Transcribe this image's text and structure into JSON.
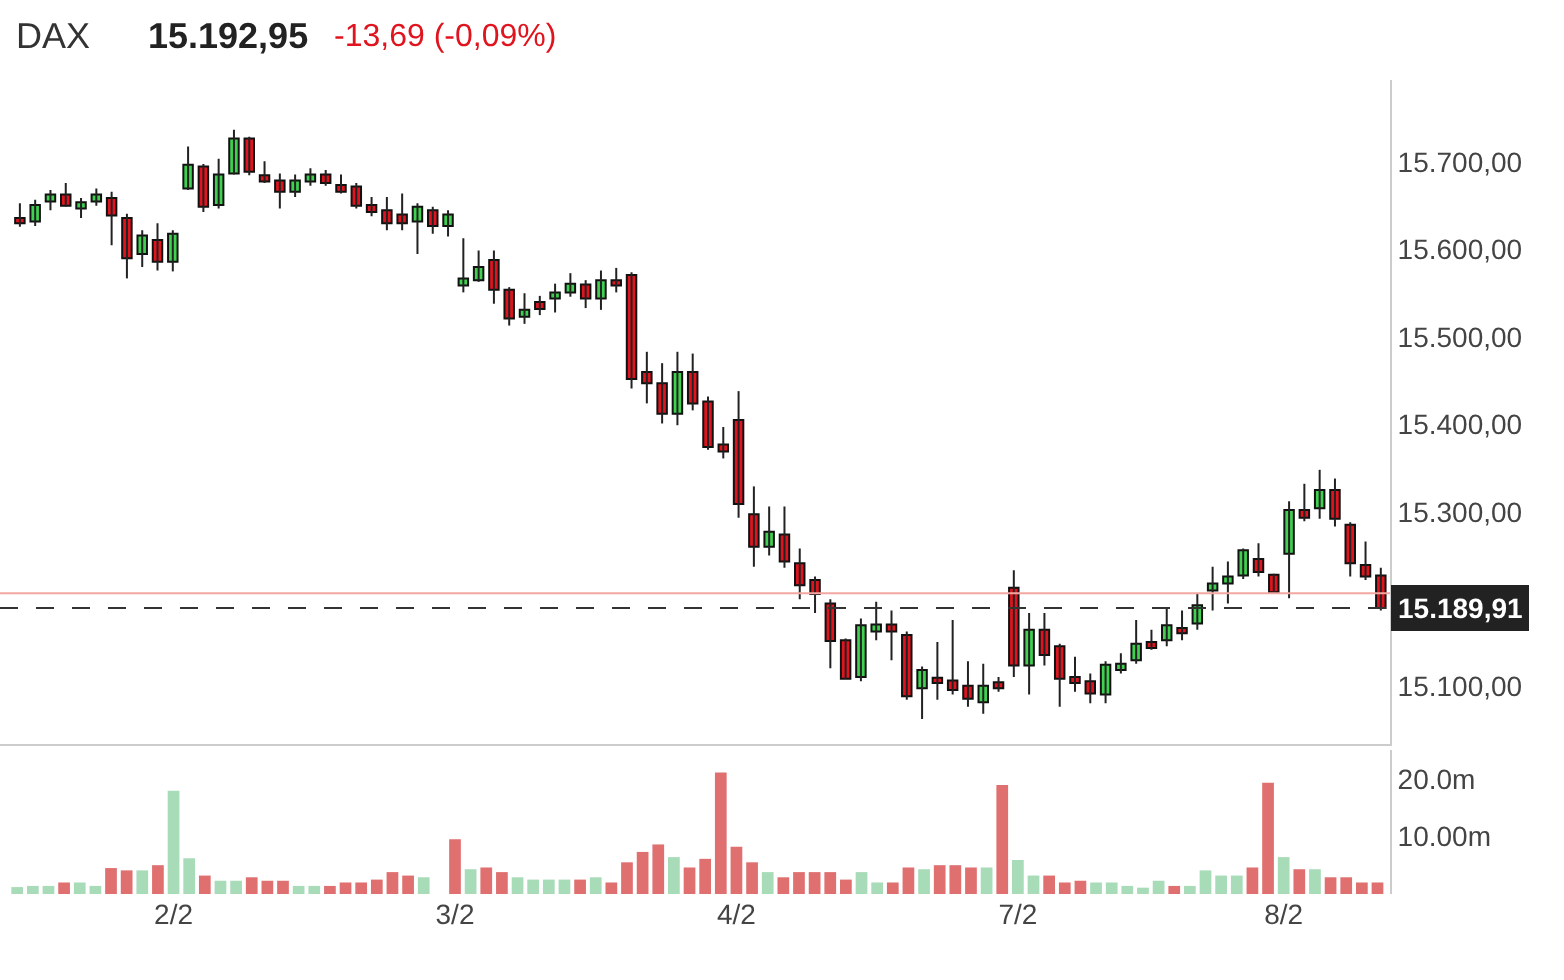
{
  "chart_data": [
    {
      "type": "candlestick",
      "title": "DAX",
      "annotations": [
        "15.192,95",
        "-13,69 (-0,09%)"
      ],
      "categories": [
        null,
        null,
        null,
        null,
        null,
        null,
        null,
        null,
        null,
        null,
        null,
        null,
        null,
        null,
        null,
        null,
        null,
        null,
        null,
        null,
        null,
        null,
        null,
        null,
        null,
        null,
        null,
        null,
        null,
        null,
        null,
        null,
        null,
        null,
        null,
        null,
        null,
        null,
        null,
        null,
        null,
        null,
        null,
        null,
        null,
        null,
        null,
        null,
        null,
        null,
        null,
        null,
        null,
        null,
        null,
        null,
        null,
        null,
        null,
        null,
        null,
        null,
        null,
        null,
        null,
        null,
        null,
        null,
        null,
        null,
        null,
        null,
        null,
        null,
        null,
        null,
        null,
        null,
        null,
        null,
        null,
        null,
        null,
        null,
        null,
        null,
        null,
        null,
        null,
        null
      ],
      "ohlc": [
        [
          15636,
          15653,
          15626,
          15630
        ],
        [
          15632,
          15657,
          15627,
          15651
        ],
        [
          15655,
          15668,
          15645,
          15663
        ],
        [
          15663,
          15676,
          15649,
          15650
        ],
        [
          15647,
          15659,
          15636,
          15654
        ],
        [
          15655,
          15670,
          15650,
          15663
        ],
        [
          15659,
          15666,
          15605,
          15639
        ],
        [
          15636,
          15641,
          15567,
          15590
        ],
        [
          15595,
          15622,
          15580,
          15616
        ],
        [
          15611,
          15630,
          15576,
          15586
        ],
        [
          15586,
          15622,
          15575,
          15618
        ],
        [
          15670,
          15718,
          15668,
          15697
        ],
        [
          15695,
          15698,
          15643,
          15649
        ],
        [
          15651,
          15704,
          15647,
          15686
        ],
        [
          15687,
          15737,
          15686,
          15727
        ],
        [
          15727,
          15729,
          15685,
          15689
        ],
        [
          15685,
          15701,
          15676,
          15678
        ],
        [
          15679,
          15687,
          15647,
          15666
        ],
        [
          15666,
          15686,
          15660,
          15679
        ],
        [
          15678,
          15693,
          15673,
          15686
        ],
        [
          15686,
          15691,
          15673,
          15676
        ],
        [
          15674,
          15686,
          15664,
          15666
        ],
        [
          15672,
          15676,
          15647,
          15650
        ],
        [
          15651,
          15660,
          15638,
          15643
        ],
        [
          15645,
          15660,
          15622,
          15630
        ],
        [
          15640,
          15664,
          15622,
          15630
        ],
        [
          15632,
          15653,
          15595,
          15649
        ],
        [
          15645,
          15649,
          15618,
          15627
        ],
        [
          15627,
          15645,
          15615,
          15640
        ],
        [
          15559,
          15613,
          15551,
          15567
        ],
        [
          15565,
          15599,
          15563,
          15580
        ],
        [
          15588,
          15599,
          15538,
          15554
        ],
        [
          15554,
          15557,
          15513,
          15521
        ],
        [
          15523,
          15550,
          15515,
          15531
        ],
        [
          15540,
          15547,
          15525,
          15532
        ],
        [
          15544,
          15561,
          15528,
          15551
        ],
        [
          15551,
          15573,
          15546,
          15561
        ],
        [
          15560,
          15565,
          15533,
          15544
        ],
        [
          15544,
          15576,
          15531,
          15565
        ],
        [
          15565,
          15579,
          15551,
          15559
        ],
        [
          15571,
          15574,
          15441,
          15452
        ],
        [
          15460,
          15483,
          15424,
          15447
        ],
        [
          15447,
          15470,
          15401,
          15412
        ],
        [
          15412,
          15483,
          15399,
          15460
        ],
        [
          15460,
          15481,
          15416,
          15424
        ],
        [
          15426,
          15432,
          15371,
          15374
        ],
        [
          15377,
          15397,
          15361,
          15369
        ],
        [
          15405,
          15438,
          15293,
          15309
        ],
        [
          15297,
          15329,
          15237,
          15260
        ],
        [
          15260,
          15306,
          15250,
          15277
        ],
        [
          15274,
          15306,
          15236,
          15243
        ],
        [
          15241,
          15258,
          15200,
          15216
        ],
        [
          15222,
          15226,
          15184,
          15206
        ],
        [
          15195,
          15200,
          15121,
          15152
        ],
        [
          15153,
          15155,
          15109,
          15109
        ],
        [
          15111,
          15178,
          15106,
          15170
        ],
        [
          15163,
          15197,
          15153,
          15171
        ],
        [
          15171,
          15187,
          15130,
          15163
        ],
        [
          15159,
          15163,
          15085,
          15089
        ],
        [
          15098,
          15123,
          15063,
          15119
        ],
        [
          15110,
          15151,
          15085,
          15104
        ],
        [
          15107,
          15176,
          15091,
          15096
        ],
        [
          15101,
          15129,
          15077,
          15086
        ],
        [
          15082,
          15126,
          15069,
          15101
        ],
        [
          15105,
          15111,
          15094,
          15098
        ],
        [
          15213,
          15233,
          15111,
          15124
        ],
        [
          15124,
          15184,
          15091,
          15165
        ],
        [
          15165,
          15184,
          15124,
          15136
        ],
        [
          15146,
          15149,
          15077,
          15109
        ],
        [
          15111,
          15134,
          15094,
          15104
        ],
        [
          15106,
          15115,
          15081,
          15092
        ],
        [
          15091,
          15129,
          15081,
          15125
        ],
        [
          15119,
          15138,
          15115,
          15126
        ],
        [
          15130,
          15176,
          15126,
          15149
        ],
        [
          15151,
          15165,
          15142,
          15144
        ],
        [
          15153,
          15191,
          15146,
          15170
        ],
        [
          15167,
          15187,
          15153,
          15161
        ],
        [
          15172,
          15206,
          15165,
          15193
        ],
        [
          15210,
          15237,
          15187,
          15218
        ],
        [
          15218,
          15243,
          15195,
          15226
        ],
        [
          15227,
          15258,
          15223,
          15256
        ],
        [
          15246,
          15264,
          15226,
          15231
        ],
        [
          15228,
          15229,
          15206,
          15208
        ],
        [
          15252,
          15312,
          15201,
          15302
        ],
        [
          15302,
          15332,
          15289,
          15293
        ],
        [
          15304,
          15348,
          15292,
          15325
        ],
        [
          15325,
          15338,
          15283,
          15292
        ],
        [
          15285,
          15288,
          15226,
          15241
        ],
        [
          15239,
          15266,
          15222,
          15226
        ],
        [
          15227,
          15236,
          15187,
          15190
        ]
      ],
      "colors": [
        "#e0141e",
        "#3fd14f",
        "#3fd14f",
        "#e0141e",
        "#3fd14f",
        "#3fd14f",
        "#e0141e",
        "#e0141e",
        "#3fd14f",
        "#e0141e",
        "#3fd14f",
        "#3fd14f",
        "#e0141e",
        "#3fd14f",
        "#3fd14f",
        "#e0141e",
        "#e0141e",
        "#e0141e",
        "#3fd14f",
        "#3fd14f",
        "#e0141e",
        "#e0141e",
        "#e0141e",
        "#e0141e",
        "#e0141e",
        "#e0141e",
        "#3fd14f",
        "#e0141e",
        "#3fd14f",
        "#3fd14f",
        "#3fd14f",
        "#e0141e",
        "#e0141e",
        "#3fd14f",
        "#e0141e",
        "#3fd14f",
        "#3fd14f",
        "#e0141e",
        "#3fd14f",
        "#e0141e",
        "#e0141e",
        "#e0141e",
        "#e0141e",
        "#3fd14f",
        "#e0141e",
        "#e0141e",
        "#e0141e",
        "#e0141e",
        "#e0141e",
        "#3fd14f",
        "#e0141e",
        "#e0141e",
        "#e0141e",
        "#e0141e",
        "#e0141e",
        "#3fd14f",
        "#3fd14f",
        "#e0141e",
        "#e0141e",
        "#3fd14f",
        "#e0141e",
        "#e0141e",
        "#e0141e",
        "#3fd14f",
        "#e0141e",
        "#e0141e",
        "#3fd14f",
        "#e0141e",
        "#e0141e",
        "#e0141e",
        "#e0141e",
        "#3fd14f",
        "#3fd14f",
        "#3fd14f",
        "#e0141e",
        "#3fd14f",
        "#e0141e",
        "#3fd14f",
        "#3fd14f",
        "#3fd14f",
        "#3fd14f",
        "#e0141e",
        "#e0141e",
        "#3fd14f",
        "#e0141e",
        "#3fd14f",
        "#e0141e",
        "#e0141e",
        "#e0141e",
        "#e0141e"
      ],
      "ylim": [
        15034,
        15794
      ],
      "yticks": [
        {
          "value": 15100,
          "label": "15.100,00"
        },
        {
          "value": 15300,
          "label": "15.300,00"
        },
        {
          "value": 15400,
          "label": "15.400,00"
        },
        {
          "value": 15500,
          "label": "15.500,00"
        },
        {
          "value": 15600,
          "label": "15.600,00"
        },
        {
          "value": 15700,
          "label": "15.700,00"
        }
      ],
      "ref_lines": [
        {
          "axis": "y",
          "value": 15206.64,
          "color": "#f2a8a0",
          "line_style": "solid"
        },
        {
          "axis": "y",
          "value": 15189.91,
          "label": "15.189,91",
          "color": "#333333",
          "line_style": "dashed"
        }
      ],
      "tick_labels": "y"
    },
    {
      "type": "bar",
      "categories": [
        null,
        null,
        null,
        null,
        null,
        null,
        null,
        null,
        null,
        null,
        "2/2",
        null,
        null,
        null,
        null,
        null,
        null,
        null,
        null,
        null,
        null,
        null,
        null,
        null,
        null,
        null,
        null,
        null,
        "3/2",
        null,
        null,
        null,
        null,
        null,
        null,
        null,
        null,
        null,
        null,
        null,
        null,
        null,
        null,
        null,
        null,
        null,
        "4/2",
        null,
        null,
        null,
        null,
        null,
        null,
        null,
        null,
        null,
        null,
        null,
        null,
        null,
        null,
        null,
        null,
        null,
        "7/2",
        null,
        null,
        null,
        null,
        null,
        null,
        null,
        null,
        null,
        null,
        null,
        null,
        null,
        null,
        null,
        null,
        "8/2",
        null,
        null,
        null,
        null,
        null,
        null
      ],
      "values": [
        1.2,
        1.4,
        1.4,
        2.0,
        2.0,
        1.4,
        4.5,
        4.1,
        4.1,
        5.0,
        17.9,
        6.2,
        3.2,
        2.3,
        2.3,
        2.9,
        2.3,
        2.3,
        1.4,
        1.4,
        1.4,
        2.0,
        2.0,
        2.5,
        3.8,
        3.2,
        2.9,
        null,
        9.5,
        4.3,
        4.6,
        3.8,
        2.9,
        2.5,
        2.5,
        2.5,
        2.5,
        2.9,
        2.0,
        5.5,
        7.3,
        8.6,
        6.4,
        4.6,
        6.1,
        21.1,
        8.2,
        5.5,
        3.8,
        2.9,
        3.8,
        3.8,
        3.8,
        2.5,
        3.8,
        2.0,
        2.0,
        4.6,
        4.3,
        5.0,
        5.0,
        4.6,
        4.6,
        18.9,
        5.9,
        3.2,
        3.2,
        2.0,
        2.3,
        2.0,
        2.0,
        1.4,
        1.1,
        2.3,
        1.4,
        1.4,
        4.1,
        3.2,
        3.2,
        4.6,
        19.3,
        6.4,
        4.3,
        4.3,
        2.9,
        2.9,
        2.0,
        2.0
      ],
      "colors": [
        "#a8dbb8",
        "#a8dbb8",
        "#a8dbb8",
        "#e07070",
        "#a8dbb8",
        "#a8dbb8",
        "#e07070",
        "#e07070",
        "#a8dbb8",
        "#e07070",
        "#a8dbb8",
        "#a8dbb8",
        "#e07070",
        "#a8dbb8",
        "#a8dbb8",
        "#e07070",
        "#e07070",
        "#e07070",
        "#a8dbb8",
        "#a8dbb8",
        "#e07070",
        "#e07070",
        "#e07070",
        "#e07070",
        "#e07070",
        "#e07070",
        "#a8dbb8",
        "#a8dbb8",
        "#e07070",
        "#a8dbb8",
        "#e07070",
        "#e07070",
        "#a8dbb8",
        "#a8dbb8",
        "#a8dbb8",
        "#a8dbb8",
        "#e07070",
        "#a8dbb8",
        "#e07070",
        "#e07070",
        "#e07070",
        "#e07070",
        "#a8dbb8",
        "#e07070",
        "#e07070",
        "#e07070",
        "#e07070",
        "#e07070",
        "#a8dbb8",
        "#e07070",
        "#e07070",
        "#e07070",
        "#e07070",
        "#e07070",
        "#a8dbb8",
        "#a8dbb8",
        "#e07070",
        "#e07070",
        "#a8dbb8",
        "#e07070",
        "#e07070",
        "#e07070",
        "#a8dbb8",
        "#e07070",
        "#a8dbb8",
        "#a8dbb8",
        "#e07070",
        "#e07070",
        "#e07070",
        "#a8dbb8",
        "#a8dbb8",
        "#a8dbb8",
        "#a8dbb8",
        "#a8dbb8",
        "#e07070",
        "#a8dbb8",
        "#a8dbb8",
        "#a8dbb8",
        "#a8dbb8",
        "#e07070",
        "#e07070",
        "#a8dbb8",
        "#e07070",
        "#a8dbb8",
        "#e07070",
        "#e07070",
        "#e07070",
        "#e07070"
      ],
      "ylim": [
        0,
        25
      ],
      "yticks": [
        {
          "value": 10,
          "label": "10.00m"
        },
        {
          "value": 20,
          "label": "20.0m"
        }
      ]
    }
  ]
}
